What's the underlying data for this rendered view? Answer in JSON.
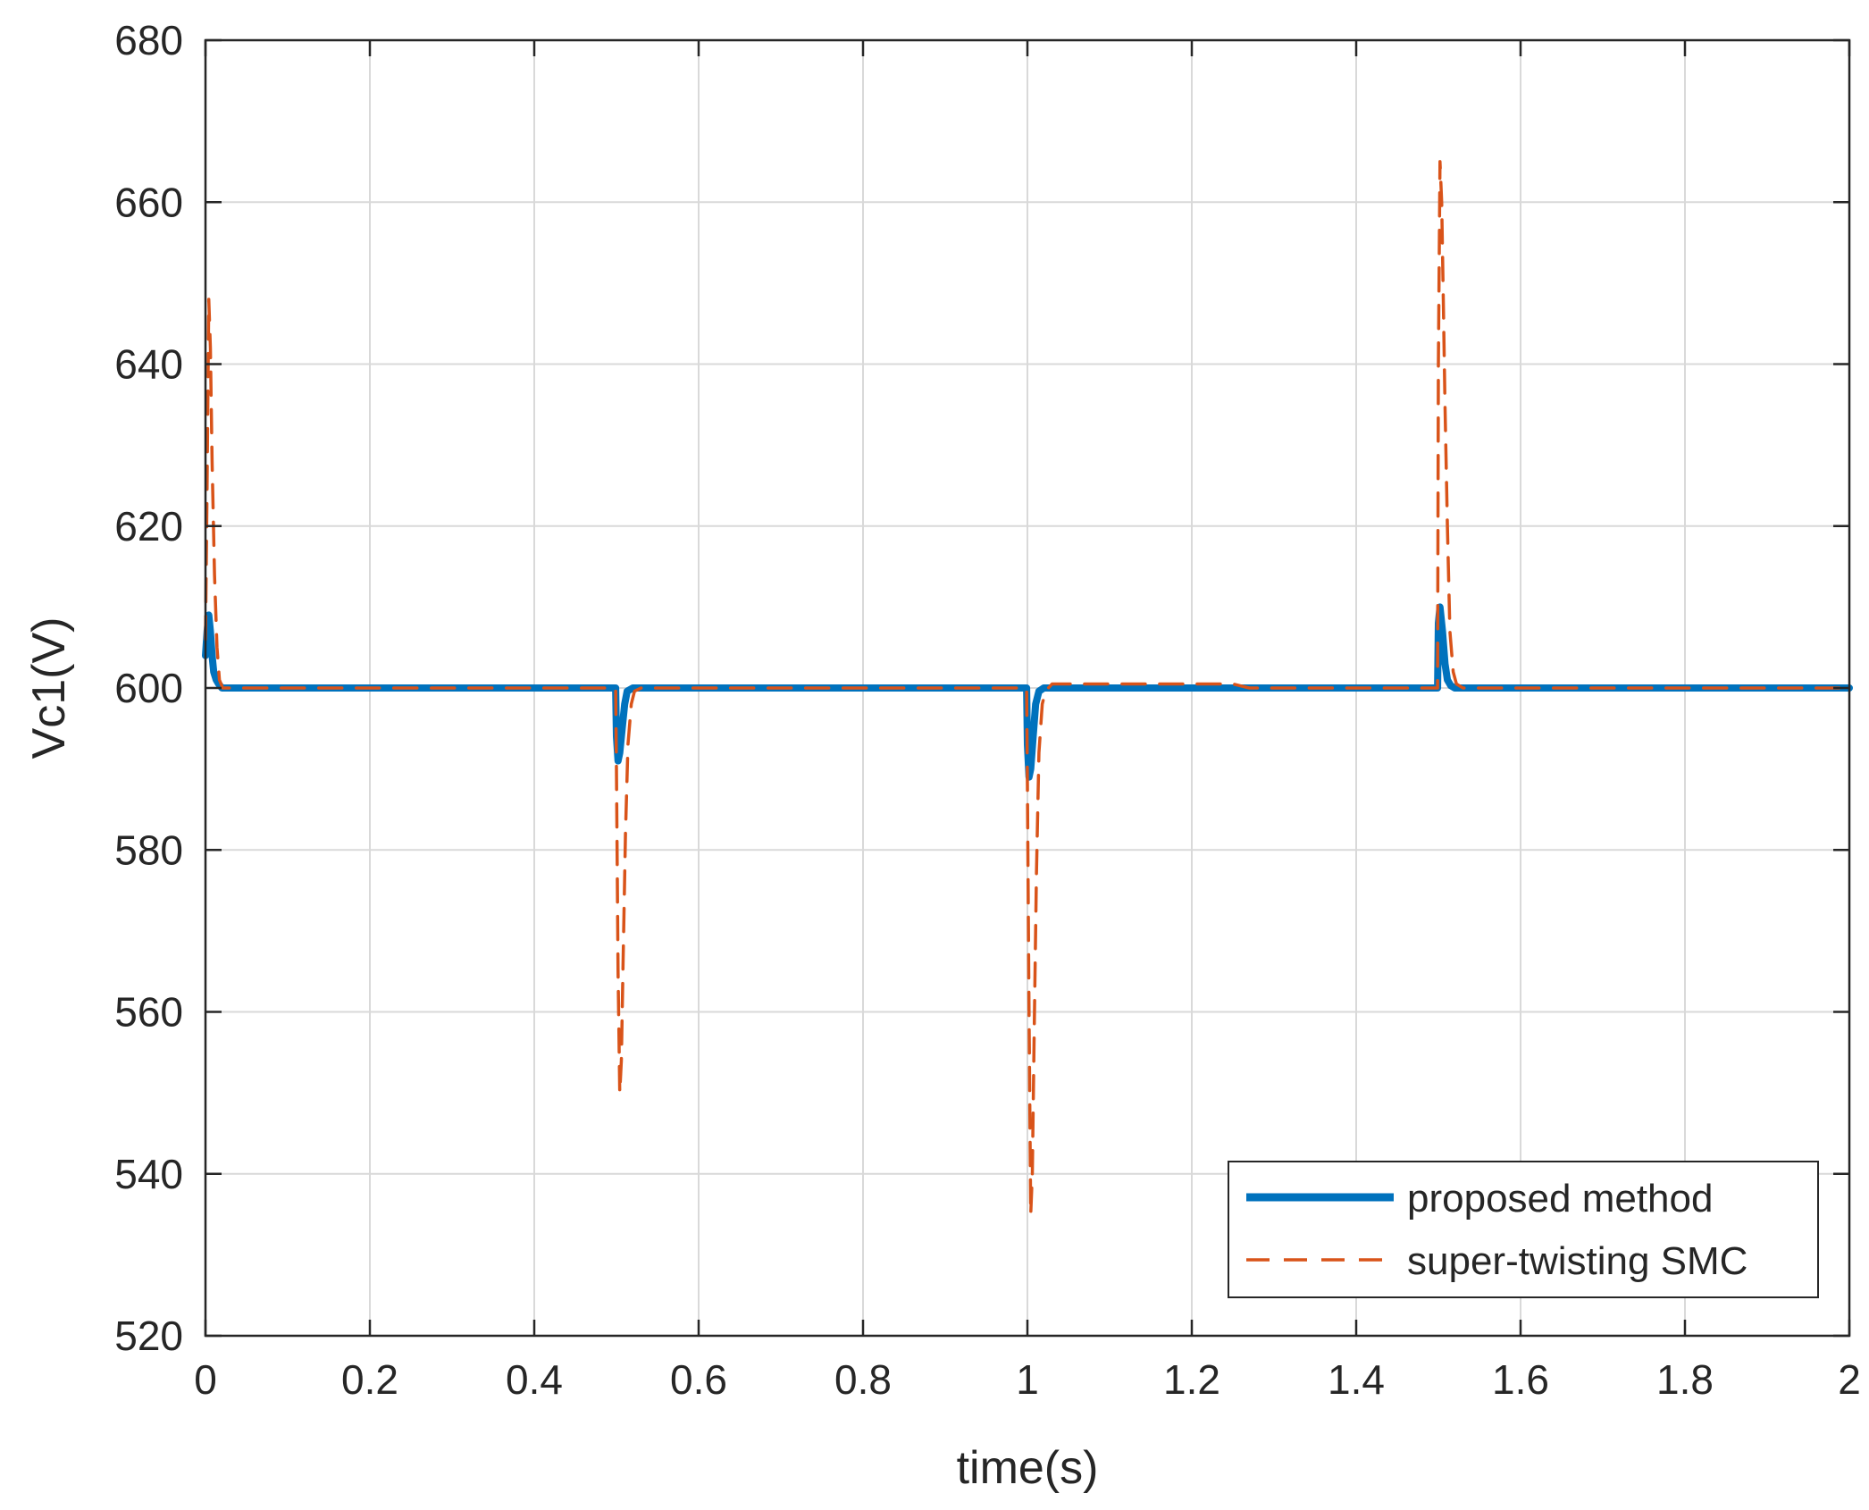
{
  "chart_data": {
    "type": "line",
    "xlabel": "time(s)",
    "ylabel": "Vc1(V)",
    "xlim": [
      0,
      2
    ],
    "ylim": [
      520,
      680
    ],
    "xticks": [
      0,
      0.2,
      0.4,
      0.6,
      0.8,
      1,
      1.2,
      1.4,
      1.6,
      1.8,
      2
    ],
    "xtick_labels": [
      "0",
      "0.2",
      "0.4",
      "0.6",
      "0.8",
      "1",
      "1.2",
      "1.4",
      "1.6",
      "1.8",
      "2"
    ],
    "yticks": [
      520,
      540,
      560,
      580,
      600,
      620,
      640,
      660,
      680
    ],
    "ytick_labels": [
      "520",
      "540",
      "560",
      "580",
      "600",
      "620",
      "640",
      "660",
      "680"
    ],
    "grid": true,
    "legend_position": "bottom-right",
    "series": [
      {
        "name": "proposed method",
        "color": "#0072BD",
        "style": "solid",
        "x": [
          0,
          0.002,
          0.004,
          0.006,
          0.008,
          0.01,
          0.013,
          0.016,
          0.02,
          0.03,
          0.499,
          0.5,
          0.502,
          0.504,
          0.507,
          0.51,
          0.513,
          0.52,
          0.999,
          1,
          1.002,
          1.004,
          1.007,
          1.01,
          1.014,
          1.02,
          1.499,
          1.5,
          1.502,
          1.505,
          1.508,
          1.511,
          1.515,
          1.52,
          2
        ],
        "y": [
          604,
          607,
          609,
          607,
          604,
          602,
          601,
          600.5,
          600,
          600,
          600,
          594,
          591,
          592,
          595,
          598,
          599.6,
          600,
          600,
          593,
          589,
          590,
          594,
          598,
          599.6,
          600,
          600,
          608,
          610,
          607,
          603,
          601,
          600.3,
          600,
          600
        ]
      },
      {
        "name": "super-twisting SMC",
        "color": "#D95319",
        "style": "dashed",
        "x": [
          0,
          0.002,
          0.004,
          0.006,
          0.008,
          0.011,
          0.014,
          0.017,
          0.021,
          0.025,
          0.03,
          0.499,
          0.5,
          0.502,
          0.504,
          0.506,
          0.508,
          0.511,
          0.514,
          0.518,
          0.522,
          0.53,
          0.999,
          1,
          1.002,
          1.004,
          1.006,
          1.008,
          1.011,
          1.014,
          1.018,
          1.022,
          1.03,
          1.25,
          1.27,
          1.499,
          1.5,
          1.502,
          1.504,
          1.506,
          1.508,
          1.511,
          1.514,
          1.518,
          1.522,
          1.53,
          2
        ],
        "y": [
          606,
          625,
          648,
          642,
          628,
          614,
          605,
          601,
          600,
          600,
          600,
          600,
          590,
          565,
          550,
          554,
          566,
          582,
          593,
          598,
          599.6,
          600,
          600,
          588,
          560,
          535,
          540,
          556,
          577,
          592,
          598,
          599.6,
          600.5,
          600.5,
          600,
          600,
          640,
          665,
          660,
          648,
          635,
          620,
          607,
          602,
          600.5,
          600,
          600
        ]
      }
    ]
  }
}
